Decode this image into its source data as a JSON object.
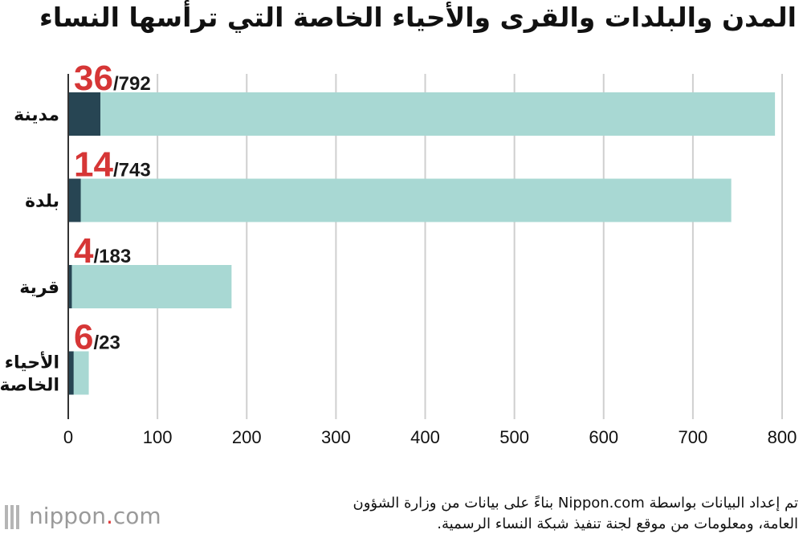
{
  "title": "المدن والبلدات والقرى والأحياء الخاصة التي ترأسها النساء",
  "source": {
    "line1": "تم إعداد البيانات بواسطة Nippon.com بناءً على بيانات من وزارة الشؤون",
    "line2": "العامة، ومعلومات من موقع لجنة تنفيذ شبكة النساء الرسمية."
  },
  "logo": {
    "name": "nippon",
    "dot": ".",
    "suffix": "com"
  },
  "chart_data": {
    "type": "bar",
    "orientation": "horizontal",
    "stacked": "overlaid",
    "categories": [
      [
        "مدينة"
      ],
      [
        "بلدة"
      ],
      [
        "قرية"
      ],
      [
        "الأحياء",
        "الخاصة"
      ]
    ],
    "series": [
      {
        "values": [
          792,
          743,
          183,
          23
        ],
        "color": "#a8d8d3"
      },
      {
        "values": [
          36,
          14,
          4,
          6
        ],
        "color": "#274553"
      }
    ],
    "labels": [
      {
        "highlight": "36",
        "rest": "/792"
      },
      {
        "highlight": "14",
        "rest": "/743"
      },
      {
        "highlight": "4",
        "rest": "/183"
      },
      {
        "highlight": "6",
        "rest": "/23"
      }
    ],
    "xlim": [
      0,
      800
    ],
    "xticks": [
      0,
      100,
      200,
      300,
      400,
      500,
      600,
      700,
      800
    ],
    "grid": true,
    "colors": {
      "highlight": "#d63636",
      "label": "#1a1a1a",
      "grid": "#cfcfcf",
      "axis": "#333333"
    }
  }
}
